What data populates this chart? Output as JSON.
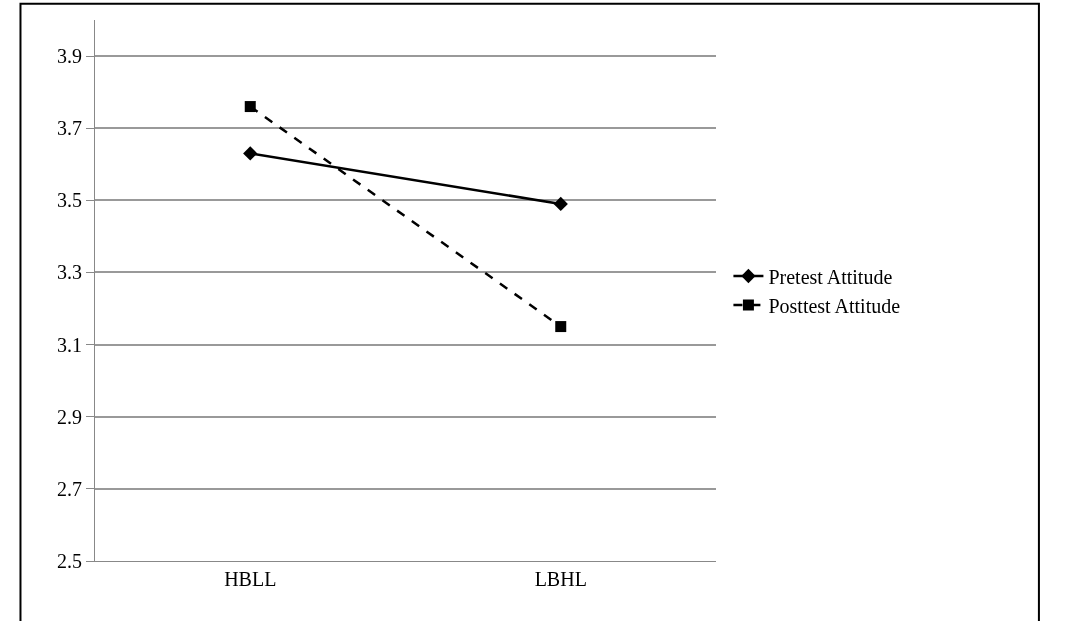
{
  "chart_data": {
    "type": "line",
    "categories": [
      "HBLL",
      "LBHL"
    ],
    "series": [
      {
        "name": "Pretest Attitude",
        "color": "#000000",
        "values": [
          3.63,
          3.49
        ],
        "marker": "diamond",
        "line_style": "solid"
      },
      {
        "name": "Posttest Attitude",
        "color": "#000000",
        "values": [
          3.76,
          3.15
        ],
        "marker": "square",
        "line_style": "dashed"
      }
    ],
    "ylim": [
      2.5,
      4.0
    ],
    "yticks": [
      2.5,
      2.7,
      2.9,
      3.1,
      3.3,
      3.5,
      3.7,
      3.9
    ],
    "grid": "y",
    "legend": "right"
  }
}
